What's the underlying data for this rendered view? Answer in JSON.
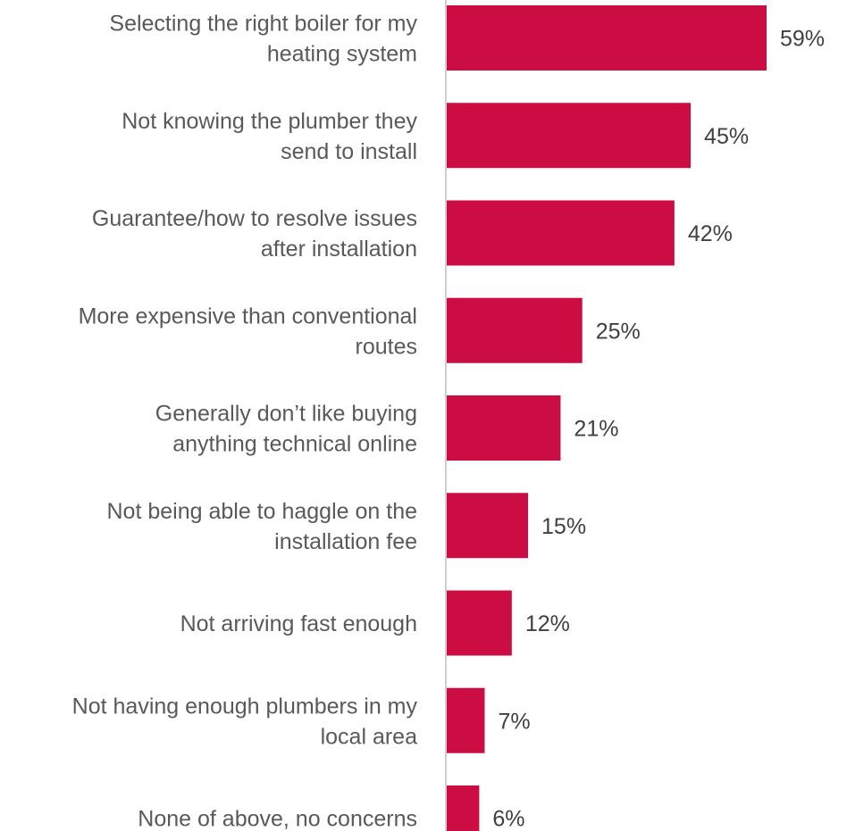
{
  "chart_data": {
    "type": "bar",
    "orientation": "horizontal",
    "categories": [
      [
        "Selecting the right boiler for my",
        "heating system"
      ],
      [
        "Not knowing the plumber they",
        "send to install"
      ],
      [
        "Guarantee/how to resolve issues",
        "after installation"
      ],
      [
        "More expensive than conventional",
        "routes"
      ],
      [
        "Generally don’t like buying",
        "anything technical online"
      ],
      [
        "Not being able to haggle on the",
        "installation fee"
      ],
      [
        "Not arriving fast enough"
      ],
      [
        "Not having enough plumbers in my",
        "local area"
      ],
      [
        "None of above, no concerns"
      ]
    ],
    "values": [
      59,
      45,
      42,
      25,
      21,
      15,
      12,
      7,
      6
    ],
    "value_labels": [
      "59%",
      "45%",
      "42%",
      "25%",
      "21%",
      "15%",
      "12%",
      "7%",
      "6%"
    ],
    "unit": "%",
    "bar_color": "#CC0D44",
    "axis_color": "#BFBFBF",
    "title": "",
    "xlabel": "",
    "ylabel": "",
    "xlim": [
      0,
      59
    ],
    "grid": false,
    "legend": "none"
  }
}
